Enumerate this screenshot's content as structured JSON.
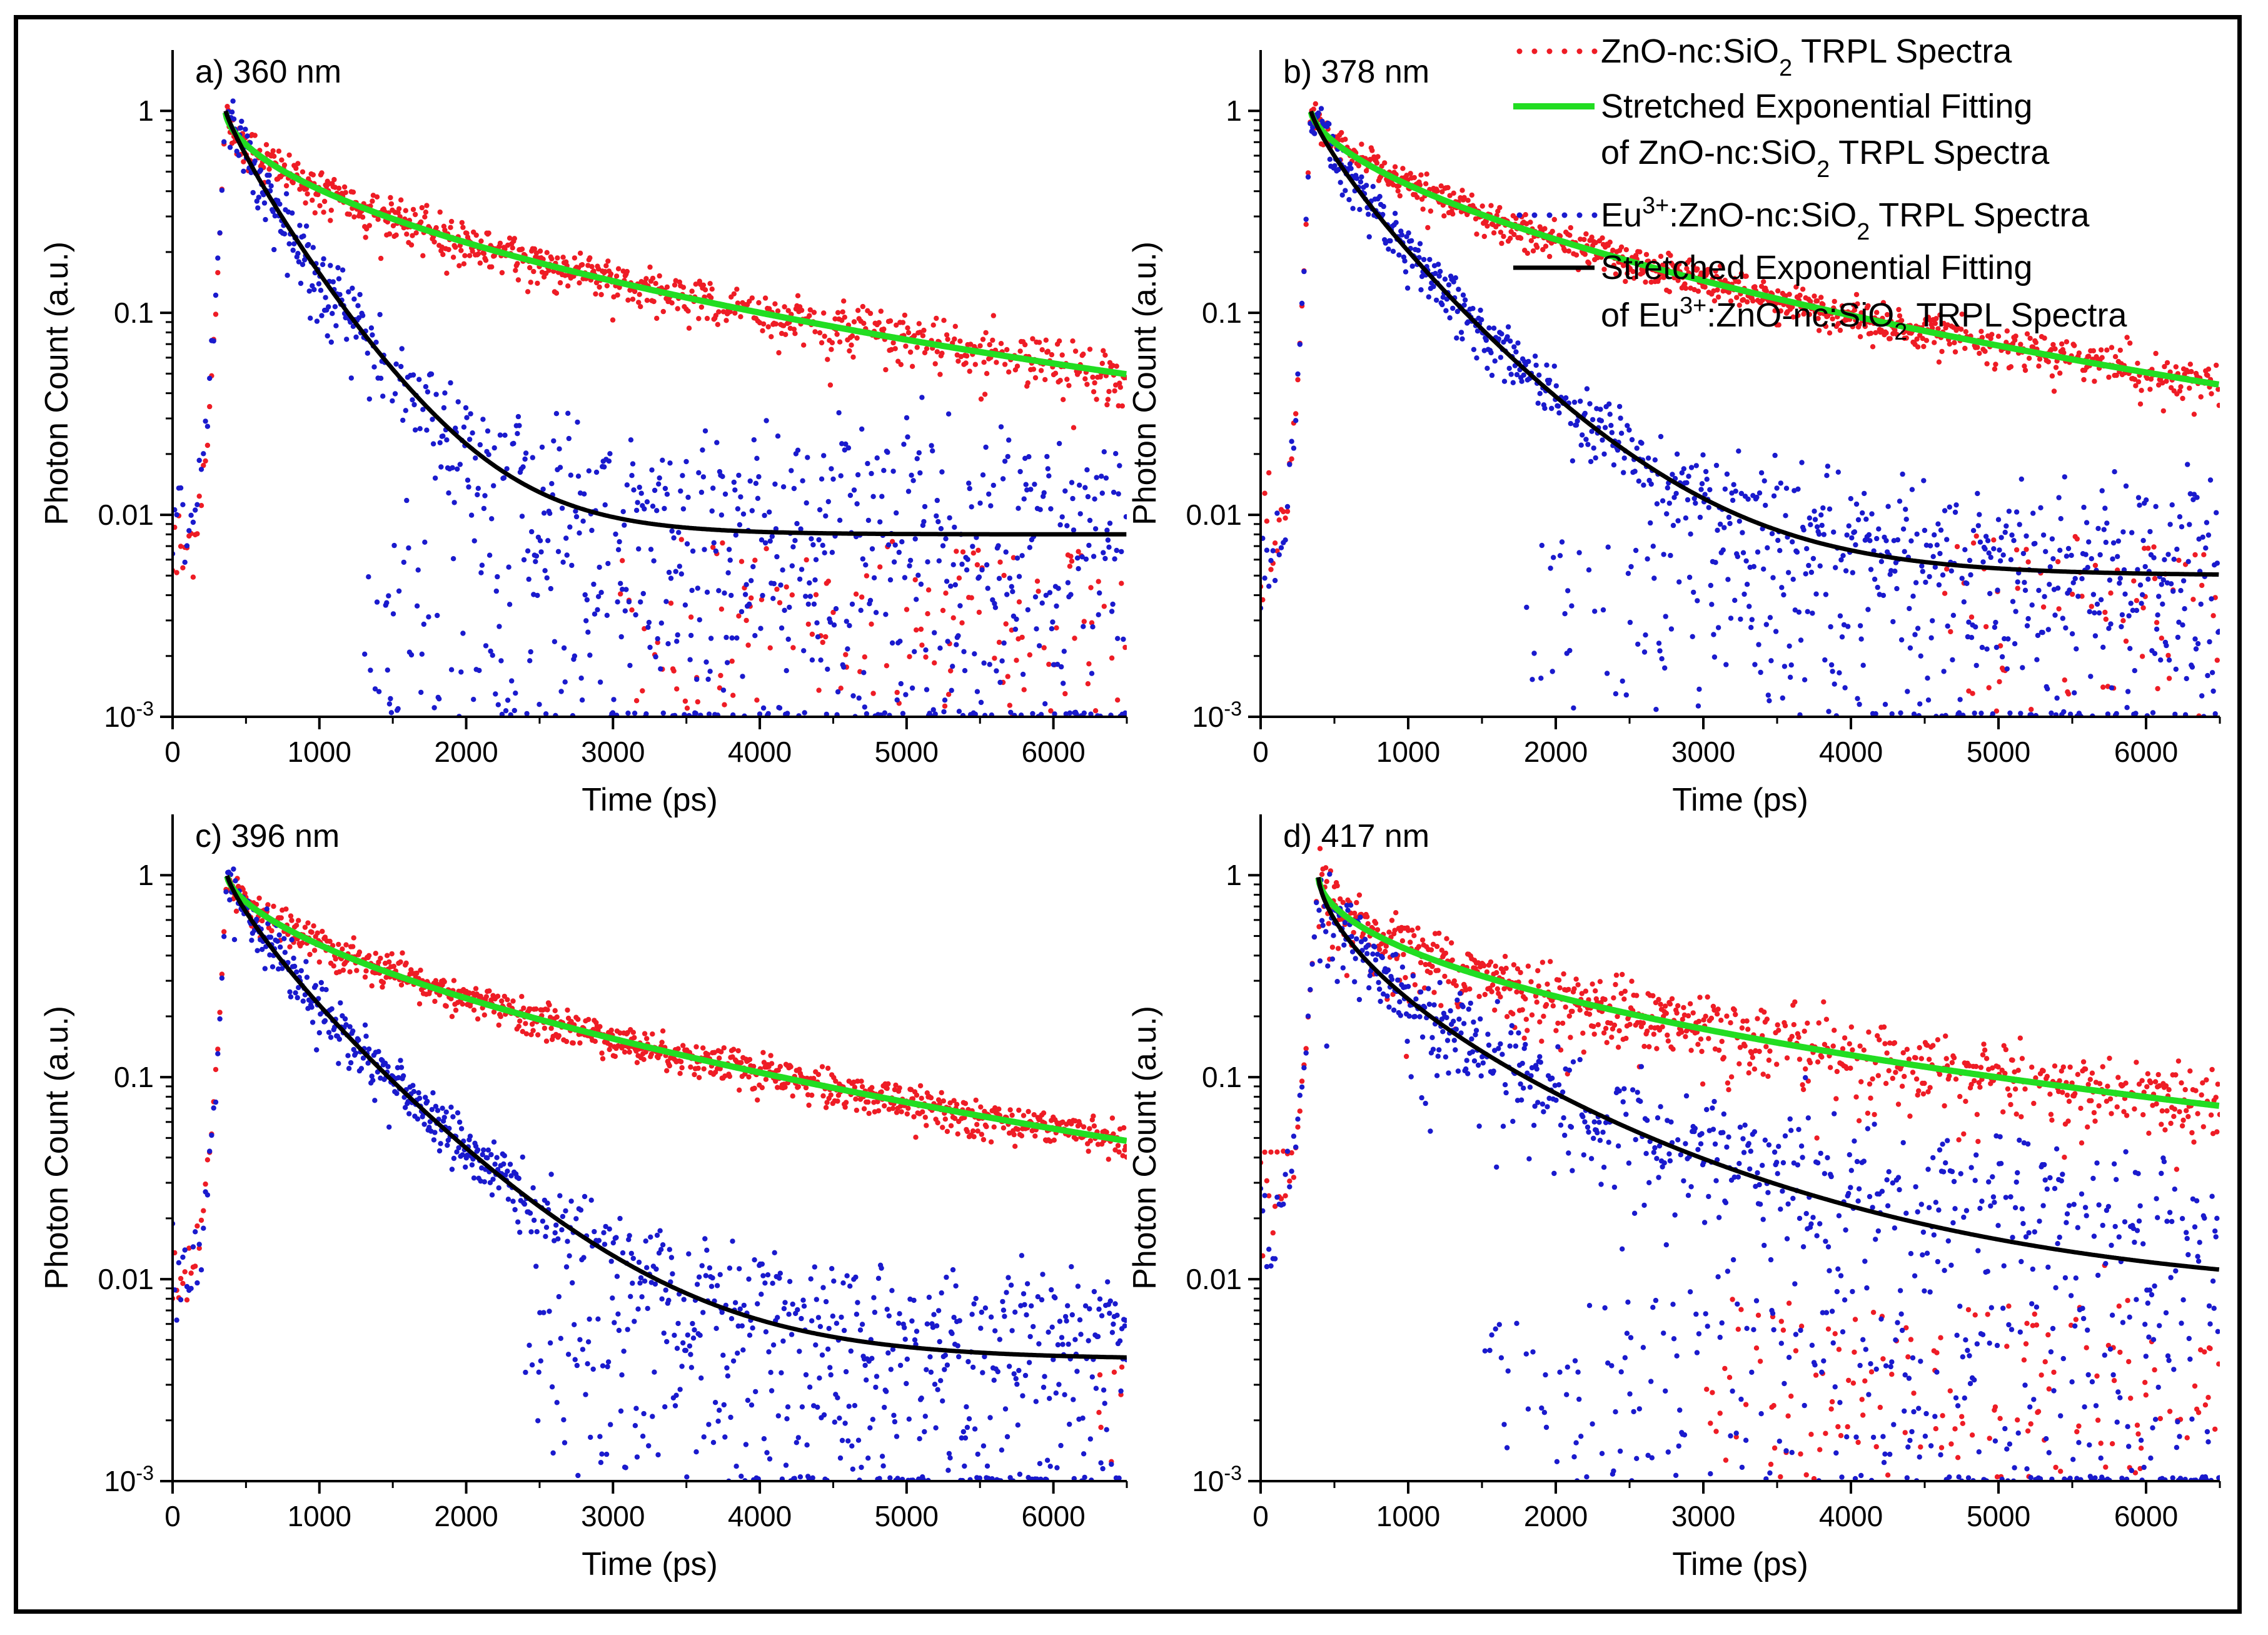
{
  "figure": {
    "x_axis_label": "Time (ps)",
    "y_axis_label": "Photon Count (a.u.)",
    "x_ticks": [
      "0",
      "1000",
      "2000",
      "3000",
      "4000",
      "5000",
      "6000"
    ],
    "y_ticks": [
      "10-3",
      "0.01",
      "0.1",
      "1"
    ]
  },
  "legend": {
    "items": [
      {
        "name": "zno-data",
        "line1": "ZnO-nc:SiO2 TRPL Spectra",
        "color": "#ee1c25",
        "kind": "dots"
      },
      {
        "name": "zno-fit",
        "line1": "Stretched Exponential Fitting",
        "line2": "of ZnO-nc:SiO2 TRPL Spectra",
        "color": "#22dd22",
        "kind": "line"
      },
      {
        "name": "eu-data",
        "line1": "Eu3+:ZnO-nc:SiO2 TRPL Spectra",
        "color": "#1a1acd",
        "kind": "dots"
      },
      {
        "name": "eu-fit",
        "line1": "Stretched Exponential Fitting",
        "line2": "of Eu3+:ZnO-nc:SiO2 TRPL Spectra",
        "color": "#000000",
        "kind": "line"
      }
    ]
  },
  "chart_data": [
    {
      "type": "scatter",
      "title": "a) 360 nm",
      "xlabel": "Time (ps)",
      "ylabel": "Photon Count (a.u.)",
      "xlim": [
        0,
        6500
      ],
      "ylim": [
        0.001,
        2
      ],
      "yscale": "log",
      "peak_time": 360,
      "series": [
        {
          "name": "ZnO-nc:SiO2 TRPL Spectra",
          "kind": "data",
          "color": "#ee1c25",
          "model": {
            "tau": 750,
            "beta": 0.55,
            "floor": 0.008,
            "noise_abs": 0.0065,
            "noise_rel": 0.12,
            "dropout_start": 3000,
            "dropout_prob": 0.25
          },
          "rise": {
            "start_time": 0,
            "start_value": 0.006,
            "noise_rel": 0.4
          }
        },
        {
          "name": "Stretched Exponential Fitting of ZnO-nc:SiO2 TRPL Spectra",
          "kind": "fit",
          "color": "#22dd22",
          "model": {
            "tau": 750,
            "beta": 0.55,
            "floor": 0.008
          }
        },
        {
          "name": "Eu3+:ZnO-nc:SiO2 TRPL Spectra",
          "kind": "data",
          "color": "#1a1acd",
          "model": {
            "tau": 300,
            "beta": 0.85,
            "floor": 0.008,
            "noise_abs": 0.0075,
            "noise_rel": 0.2,
            "dropout_start": 1300,
            "dropout_prob": 0.3
          },
          "rise": {
            "start_time": 0,
            "start_value": 0.008,
            "noise_rel": 0.4
          }
        },
        {
          "name": "Stretched Exponential Fitting of Eu3+:ZnO-nc:SiO2 TRPL Spectra",
          "kind": "fit",
          "color": "#000000",
          "model": {
            "tau": 300,
            "beta": 0.85,
            "floor": 0.008
          }
        }
      ]
    },
    {
      "type": "scatter",
      "title": "b) 378 nm",
      "xlabel": "Time (ps)",
      "ylabel": "Photon Count (a.u.)",
      "xlim": [
        0,
        6500
      ],
      "ylim": [
        0.001,
        2
      ],
      "yscale": "log",
      "peak_time": 340,
      "series": [
        {
          "name": "ZnO-nc:SiO2 TRPL Spectra",
          "kind": "data",
          "color": "#ee1c25",
          "model": {
            "tau": 850,
            "beta": 0.6,
            "floor": 0.0065,
            "noise_abs": 0.003,
            "noise_rel": 0.1,
            "dropout_start": 4600,
            "dropout_prob": 0.25
          },
          "rise": {
            "start_time": 0,
            "start_value": 0.006,
            "noise_rel": 0.35
          }
        },
        {
          "name": "Stretched Exponential Fitting of ZnO-nc:SiO2 TRPL Spectra",
          "kind": "fit",
          "color": "#22dd22",
          "model": {
            "tau": 850,
            "beta": 0.6,
            "floor": 0.0065
          }
        },
        {
          "name": "Eu3+:ZnO-nc:SiO2 TRPL Spectra",
          "kind": "data",
          "color": "#1a1acd",
          "model": {
            "tau": 360,
            "beta": 0.8,
            "floor": 0.005,
            "noise_abs": 0.004,
            "noise_rel": 0.15,
            "dropout_start": 1800,
            "dropout_prob": 0.28
          },
          "rise": {
            "start_time": 0,
            "start_value": 0.005,
            "noise_rel": 0.4
          }
        },
        {
          "name": "Stretched Exponential Fitting of Eu3+:ZnO-nc:SiO2 TRPL Spectra",
          "kind": "fit",
          "color": "#000000",
          "model": {
            "tau": 360,
            "beta": 0.8,
            "floor": 0.005
          }
        }
      ]
    },
    {
      "type": "scatter",
      "title": "c) 396 nm",
      "xlabel": "Time (ps)",
      "ylabel": "Photon Count (a.u.)",
      "xlim": [
        0,
        6500
      ],
      "ylim": [
        0.001,
        2
      ],
      "yscale": "log",
      "peak_time": 370,
      "series": [
        {
          "name": "ZnO-nc:SiO2 TRPL Spectra",
          "kind": "data",
          "color": "#ee1c25",
          "model": {
            "tau": 900,
            "beta": 0.6,
            "floor": 0.006,
            "noise_abs": 0.0025,
            "noise_rel": 0.1,
            "dropout_start": 6300,
            "dropout_prob": 0.3
          },
          "rise": {
            "start_time": 0,
            "start_value": 0.01,
            "noise_rel": 0.25
          }
        },
        {
          "name": "Stretched Exponential Fitting of ZnO-nc:SiO2 TRPL Spectra",
          "kind": "fit",
          "color": "#22dd22",
          "model": {
            "tau": 900,
            "beta": 0.6,
            "floor": 0.006
          }
        },
        {
          "name": "Eu3+:ZnO-nc:SiO2 TRPL Spectra",
          "kind": "data",
          "color": "#1a1acd",
          "model": {
            "tau": 380,
            "beta": 0.8,
            "floor": 0.004,
            "noise_abs": 0.0035,
            "noise_rel": 0.15,
            "dropout_start": 2400,
            "dropout_prob": 0.3
          },
          "rise": {
            "start_time": 0,
            "start_value": 0.008,
            "noise_rel": 0.4
          }
        },
        {
          "name": "Stretched Exponential Fitting of Eu3+:ZnO-nc:SiO2 TRPL Spectra",
          "kind": "fit",
          "color": "#000000",
          "model": {
            "tau": 380,
            "beta": 0.8,
            "floor": 0.004
          }
        }
      ]
    },
    {
      "type": "scatter",
      "title": "d) 417 nm",
      "xlabel": "Time (ps)",
      "ylabel": "Photon Count (a.u.)",
      "xlim": [
        0,
        6500
      ],
      "ylim": [
        0.001,
        2
      ],
      "yscale": "log",
      "peak_time": 390,
      "series": [
        {
          "name": "ZnO-nc:SiO2 TRPL Spectra",
          "kind": "data",
          "color": "#ee1c25",
          "model": {
            "tau": 800,
            "beta": 0.5,
            "floor": 0.009,
            "noise_abs": 0.012,
            "noise_rel": 0.2,
            "dropout_start": 3000,
            "dropout_prob": 0.25
          },
          "rise": {
            "start_time": 0,
            "start_value": 0.02,
            "noise_rel": 0.5
          }
        },
        {
          "name": "Stretched Exponential Fitting of ZnO-nc:SiO2 TRPL Spectra",
          "kind": "fit",
          "color": "#22dd22",
          "model": {
            "tau": 800,
            "beta": 0.5,
            "floor": 0.009
          }
        },
        {
          "name": "Eu3+:ZnO-nc:SiO2 TRPL Spectra",
          "kind": "data",
          "color": "#1a1acd",
          "model": {
            "tau": 330,
            "beta": 0.6,
            "floor": 0.008,
            "noise_abs": 0.014,
            "noise_rel": 0.25,
            "dropout_start": 1500,
            "dropout_prob": 0.3
          },
          "rise": {
            "start_time": 0,
            "start_value": 0.02,
            "noise_rel": 0.5
          }
        },
        {
          "name": "Stretched Exponential Fitting of Eu3+:ZnO-nc:SiO2 TRPL Spectra",
          "kind": "fit",
          "color": "#000000",
          "model": {
            "tau": 330,
            "beta": 0.6,
            "floor": 0.008
          }
        }
      ]
    }
  ]
}
